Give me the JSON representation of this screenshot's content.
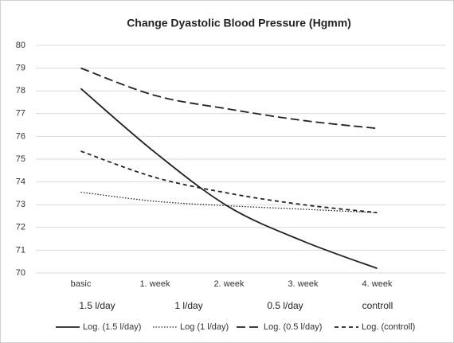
{
  "chart_data": {
    "type": "line",
    "title": "Change Dyastolic Blood Pressure (Hgmm)",
    "categories": [
      "basic",
      "1. week",
      "2. week",
      "3. week",
      "4. week"
    ],
    "group_labels": [
      "1.5 l/day",
      "1 l/day",
      "0.5 l/day",
      "controll"
    ],
    "series": [
      {
        "name": "Log.  (1.5 l/day)",
        "color": "#222222",
        "dash": "solid",
        "values": [
          78.1,
          75.3,
          72.9,
          71.4,
          70.2
        ]
      },
      {
        "name": "Log  (1 l/day)",
        "color": "#222222",
        "dash": "dotted",
        "values": [
          73.55,
          73.15,
          72.95,
          72.8,
          72.65
        ]
      },
      {
        "name": "Log.  (0.5 l/day)",
        "color": "#222222",
        "dash": "long-dash",
        "values": [
          79.0,
          77.8,
          77.2,
          76.7,
          76.35
        ]
      },
      {
        "name": "Log.  (controll)",
        "color": "#222222",
        "dash": "short-dash",
        "values": [
          75.35,
          74.2,
          73.5,
          73.0,
          72.65
        ]
      }
    ],
    "ylim": [
      70,
      80
    ],
    "yticks": [
      70,
      71,
      72,
      73,
      74,
      75,
      76,
      77,
      78,
      79,
      80
    ],
    "grid": true
  }
}
